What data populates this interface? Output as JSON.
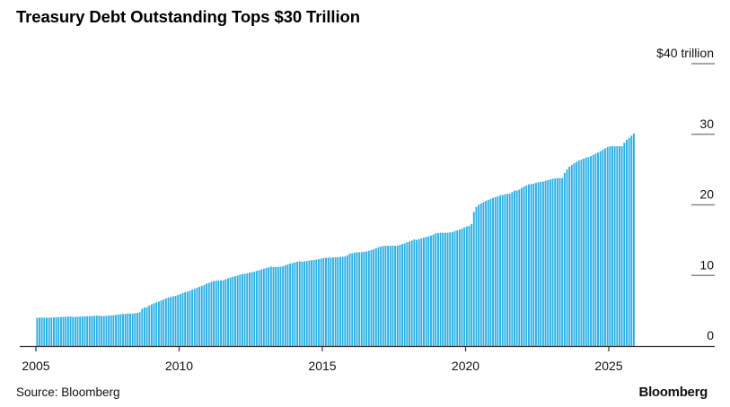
{
  "chart_data": {
    "type": "bar",
    "title": "Treasury Debt Outstanding Tops $30 Trillion",
    "source": "Source: Bloomberg",
    "logo": "Bloomberg",
    "frequency": "monthly",
    "start": "2005-01",
    "xlim": [
      2005,
      2026
    ],
    "x_ticks": [
      "2005",
      "2010",
      "2015",
      "2020",
      "2025"
    ],
    "ylim": [
      0,
      40
    ],
    "y_ticks": [
      {
        "value": 0,
        "label": "0"
      },
      {
        "value": 10,
        "label": "10"
      },
      {
        "value": 20,
        "label": "20"
      },
      {
        "value": 30,
        "label": "30"
      },
      {
        "value": 40,
        "label": "$40 trillion"
      }
    ],
    "y_axis_position": "right",
    "bar_color": "#2CB0E4",
    "values_by_year": {
      "2005": [
        4.0,
        4.02,
        4.05,
        4.0,
        4.01,
        4.03,
        4.04,
        4.06,
        4.08,
        4.1,
        4.12,
        4.13
      ],
      "2006": [
        4.15,
        4.17,
        4.2,
        4.13,
        4.12,
        4.15,
        4.18,
        4.2,
        4.2,
        4.22,
        4.25,
        4.26
      ],
      "2007": [
        4.28,
        4.3,
        4.32,
        4.25,
        4.27,
        4.28,
        4.3,
        4.35,
        4.38,
        4.42,
        4.45,
        4.5
      ],
      "2008": [
        4.55,
        4.55,
        4.62,
        4.6,
        4.58,
        4.65,
        4.7,
        4.8,
        5.3,
        5.45,
        5.5,
        5.75
      ],
      "2009": [
        5.9,
        6.05,
        6.2,
        6.3,
        6.45,
        6.6,
        6.75,
        6.85,
        6.95,
        7.05,
        7.1,
        7.25
      ],
      "2010": [
        7.35,
        7.5,
        7.65,
        7.7,
        7.85,
        8.0,
        8.1,
        8.25,
        8.4,
        8.5,
        8.65,
        8.85
      ],
      "2011": [
        8.95,
        9.1,
        9.2,
        9.25,
        9.3,
        9.3,
        9.32,
        9.45,
        9.6,
        9.7,
        9.8,
        9.9
      ],
      "2012": [
        10.0,
        10.1,
        10.2,
        10.25,
        10.3,
        10.4,
        10.45,
        10.55,
        10.65,
        10.75,
        10.85,
        10.95
      ],
      "2013": [
        11.05,
        11.15,
        11.25,
        11.2,
        11.2,
        11.22,
        11.25,
        11.3,
        11.45,
        11.55,
        11.7,
        11.75
      ],
      "2014": [
        11.85,
        11.95,
        12.0,
        11.95,
        12.0,
        12.05,
        12.1,
        12.15,
        12.2,
        12.25,
        12.3,
        12.4
      ],
      "2015": [
        12.45,
        12.5,
        12.55,
        12.52,
        12.55,
        12.58,
        12.6,
        12.62,
        12.65,
        12.7,
        12.85,
        13.1
      ],
      "2016": [
        13.15,
        13.2,
        13.3,
        13.28,
        13.3,
        13.35,
        13.4,
        13.5,
        13.6,
        13.7,
        13.85,
        14.0
      ],
      "2017": [
        14.1,
        14.15,
        14.2,
        14.2,
        14.2,
        14.2,
        14.2,
        14.2,
        14.35,
        14.45,
        14.55,
        14.7
      ],
      "2018": [
        14.8,
        14.95,
        15.1,
        15.05,
        15.15,
        15.25,
        15.35,
        15.45,
        15.55,
        15.65,
        15.8,
        15.95
      ],
      "2019": [
        16.0,
        16.05,
        16.05,
        16.05,
        16.05,
        16.1,
        16.15,
        16.3,
        16.4,
        16.5,
        16.65,
        16.8
      ],
      "2020": [
        16.95,
        17.0,
        17.3,
        19.0,
        19.7,
        20.0,
        20.2,
        20.4,
        20.55,
        20.7,
        20.85,
        21.0
      ],
      "2021": [
        21.1,
        21.2,
        21.35,
        21.4,
        21.5,
        21.55,
        21.6,
        21.8,
        22.0,
        22.05,
        22.15,
        22.4
      ],
      "2022": [
        22.6,
        22.75,
        22.9,
        22.95,
        23.0,
        23.1,
        23.2,
        23.25,
        23.3,
        23.4,
        23.5,
        23.6
      ],
      "2023": [
        23.7,
        23.75,
        23.8,
        23.8,
        23.8,
        24.5,
        25.0,
        25.4,
        25.65,
        25.9,
        26.1,
        26.3
      ],
      "2024": [
        26.4,
        26.55,
        26.7,
        26.75,
        26.9,
        27.1,
        27.25,
        27.4,
        27.6,
        27.8,
        28.0,
        28.2
      ],
      "2025": [
        28.3,
        28.3,
        28.3,
        28.3,
        28.3,
        28.3,
        28.8,
        29.2,
        29.5,
        29.8,
        30.1
      ]
    }
  }
}
